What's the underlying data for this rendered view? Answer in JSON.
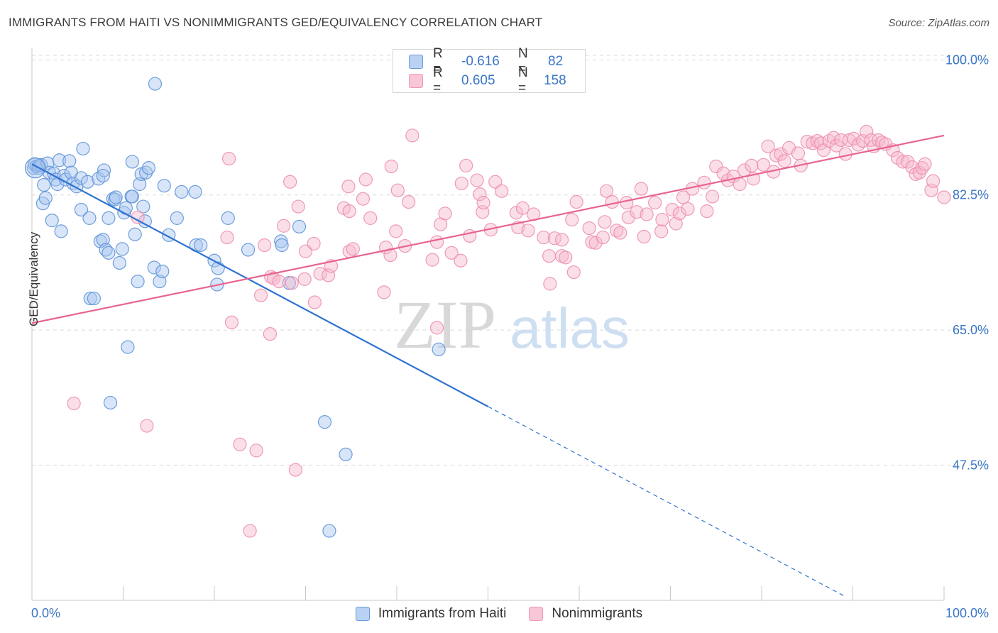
{
  "header": {
    "title": "IMMIGRANTS FROM HAITI VS NONIMMIGRANTS GED/EQUIVALENCY CORRELATION CHART",
    "source": "Source: ZipAtlas.com"
  },
  "watermark": {
    "zip": "ZIP",
    "atlas": "atlas"
  },
  "legend_top": {
    "rows": [
      {
        "r_label": "R =",
        "r_value": "-0.616",
        "n_label": "N =",
        "n_value": "82"
      },
      {
        "r_label": "R =",
        "r_value": "0.605",
        "n_label": "N =",
        "n_value": "158"
      }
    ]
  },
  "legend_bottom": {
    "series1": "Immigrants from Haiti",
    "series2": "Nonimmigrants"
  },
  "colors": {
    "blue_fill": "#a9c6ef",
    "blue_stroke": "#5e93d8",
    "blue_line": "#2f73d0",
    "pink_fill": "#f6b8cc",
    "pink_stroke": "#ec8fb0",
    "pink_line": "#e8648f",
    "axis_text": "#3a76c7",
    "grid": "#d9d9d9"
  },
  "chart_data": {
    "type": "scatter",
    "title": "IMMIGRANTS FROM HAITI VS NONIMMIGRANTS GED/EQUIVALENCY CORRELATION CHART",
    "xlabel": "",
    "ylabel": "GED/Equivalency",
    "xlim": [
      0,
      100
    ],
    "ylim": [
      30,
      101.5
    ],
    "x_tick_labels": [
      "0.0%",
      "100.0%"
    ],
    "y_ticks": [
      47.5,
      65.0,
      82.5,
      100.0
    ],
    "y_tick_labels": [
      "47.5%",
      "65.0%",
      "82.5%",
      "100.0%"
    ],
    "grid": "horizontal dashed",
    "legend_position": "top-center and bottom",
    "series": [
      {
        "name": "Immigrants from Haiti",
        "R": -0.616,
        "N": 82,
        "trend": {
          "x": [
            0,
            50
          ],
          "y": [
            86.5,
            55.1
          ]
        },
        "trend_dashed": {
          "x": [
            50,
            89
          ],
          "y": [
            55.1,
            30.6
          ]
        },
        "points": [
          [
            0.2,
            86.0
          ],
          [
            0.3,
            86.5
          ],
          [
            0.5,
            86.2
          ],
          [
            0.7,
            86.0
          ],
          [
            0.8,
            86.3
          ],
          [
            1.0,
            86.4
          ],
          [
            1.2,
            81.4
          ],
          [
            1.3,
            83.8
          ],
          [
            1.5,
            82.1
          ],
          [
            1.7,
            86.6
          ],
          [
            1.9,
            85.4
          ],
          [
            2.2,
            79.2
          ],
          [
            2.4,
            85.3
          ],
          [
            2.6,
            84.5
          ],
          [
            2.8,
            83.9
          ],
          [
            3.0,
            87.0
          ],
          [
            3.2,
            77.8
          ],
          [
            3.5,
            85.0
          ],
          [
            3.7,
            84.5
          ],
          [
            4.1,
            86.9
          ],
          [
            4.3,
            85.4
          ],
          [
            4.5,
            84.0
          ],
          [
            4.9,
            83.6
          ],
          [
            5.4,
            80.6
          ],
          [
            5.4,
            84.7
          ],
          [
            5.6,
            88.5
          ],
          [
            6.1,
            84.2
          ],
          [
            6.3,
            79.5
          ],
          [
            6.4,
            69.1
          ],
          [
            6.8,
            69.1
          ],
          [
            7.3,
            84.6
          ],
          [
            7.5,
            76.5
          ],
          [
            7.8,
            76.7
          ],
          [
            7.9,
            85.7
          ],
          [
            7.8,
            85.0
          ],
          [
            8.1,
            75.4
          ],
          [
            8.4,
            75.0
          ],
          [
            8.4,
            79.5
          ],
          [
            8.6,
            55.6
          ],
          [
            8.9,
            82.0
          ],
          [
            9.1,
            81.9
          ],
          [
            9.2,
            82.2
          ],
          [
            9.6,
            73.7
          ],
          [
            9.9,
            75.5
          ],
          [
            10.1,
            80.2
          ],
          [
            10.3,
            80.8
          ],
          [
            10.5,
            62.8
          ],
          [
            10.9,
            82.3
          ],
          [
            11.0,
            82.3
          ],
          [
            11.0,
            86.8
          ],
          [
            11.3,
            77.4
          ],
          [
            11.6,
            71.3
          ],
          [
            11.8,
            83.9
          ],
          [
            12.0,
            85.2
          ],
          [
            12.2,
            81.0
          ],
          [
            12.4,
            79.1
          ],
          [
            12.5,
            85.4
          ],
          [
            12.8,
            86.0
          ],
          [
            13.4,
            73.1
          ],
          [
            13.5,
            96.9
          ],
          [
            14.0,
            71.3
          ],
          [
            14.3,
            72.6
          ],
          [
            14.5,
            83.7
          ],
          [
            15.0,
            77.3
          ],
          [
            15.9,
            79.5
          ],
          [
            16.4,
            82.9
          ],
          [
            17.9,
            82.9
          ],
          [
            18.0,
            76.0
          ],
          [
            18.5,
            76.0
          ],
          [
            20.0,
            74.0
          ],
          [
            20.4,
            73.0
          ],
          [
            20.3,
            70.9
          ],
          [
            21.5,
            79.5
          ],
          [
            23.7,
            75.4
          ],
          [
            27.3,
            76.5
          ],
          [
            27.4,
            76.0
          ],
          [
            28.2,
            71.1
          ],
          [
            29.3,
            78.4
          ],
          [
            32.1,
            53.1
          ],
          [
            32.6,
            39.0
          ],
          [
            34.4,
            48.9
          ],
          [
            44.6,
            62.5
          ]
        ]
      },
      {
        "name": "Nonimmigrants",
        "R": 0.605,
        "N": 158,
        "trend": {
          "x": [
            0,
            100
          ],
          "y": [
            65.9,
            90.2
          ]
        },
        "points": [
          [
            4.6,
            55.5
          ],
          [
            11.6,
            79.6
          ],
          [
            12.6,
            52.6
          ],
          [
            21.4,
            77.0
          ],
          [
            21.6,
            87.2
          ],
          [
            21.9,
            66.0
          ],
          [
            22.8,
            50.2
          ],
          [
            23.9,
            39.0
          ],
          [
            24.6,
            49.4
          ],
          [
            25.1,
            69.5
          ],
          [
            25.5,
            76.0
          ],
          [
            26.2,
            71.9
          ],
          [
            26.1,
            64.5
          ],
          [
            26.5,
            71.7
          ],
          [
            27.1,
            71.3
          ],
          [
            27.6,
            78.5
          ],
          [
            28.3,
            84.2
          ],
          [
            28.5,
            71.1
          ],
          [
            28.9,
            46.9
          ],
          [
            29.2,
            81.0
          ],
          [
            29.9,
            71.6
          ],
          [
            30.0,
            75.2
          ],
          [
            30.9,
            76.2
          ],
          [
            31.0,
            68.6
          ],
          [
            31.6,
            72.3
          ],
          [
            32.5,
            72.1
          ],
          [
            32.8,
            73.3
          ],
          [
            34.2,
            80.8
          ],
          [
            34.7,
            83.6
          ],
          [
            34.8,
            75.2
          ],
          [
            34.8,
            80.4
          ],
          [
            35.2,
            75.5
          ],
          [
            36.6,
            84.5
          ],
          [
            36.3,
            82.0
          ],
          [
            37.1,
            79.5
          ],
          [
            38.6,
            69.9
          ],
          [
            38.8,
            75.7
          ],
          [
            39.3,
            74.7
          ],
          [
            39.4,
            86.2
          ],
          [
            39.9,
            77.8
          ],
          [
            40.1,
            83.1
          ],
          [
            40.9,
            75.9
          ],
          [
            41.3,
            81.6
          ],
          [
            41.7,
            90.2
          ],
          [
            43.9,
            74.1
          ],
          [
            44.4,
            76.4
          ],
          [
            44.4,
            65.3
          ],
          [
            44.8,
            78.7
          ],
          [
            45.3,
            80.1
          ],
          [
            46.0,
            75.0
          ],
          [
            47.0,
            74.0
          ],
          [
            47.1,
            84.0
          ],
          [
            47.6,
            86.3
          ],
          [
            48.0,
            77.2
          ],
          [
            48.8,
            84.4
          ],
          [
            49.1,
            82.6
          ],
          [
            49.4,
            80.3
          ],
          [
            49.5,
            81.5
          ],
          [
            50.3,
            78.0
          ],
          [
            50.8,
            84.2
          ],
          [
            51.5,
            83.0
          ],
          [
            53.1,
            80.2
          ],
          [
            53.3,
            78.3
          ],
          [
            53.8,
            80.8
          ],
          [
            54.4,
            77.9
          ],
          [
            55.0,
            80.0
          ],
          [
            56.1,
            77.0
          ],
          [
            56.8,
            71.0
          ],
          [
            56.7,
            74.6
          ],
          [
            57.3,
            76.9
          ],
          [
            58.1,
            76.7
          ],
          [
            58.1,
            74.6
          ],
          [
            58.5,
            74.4
          ],
          [
            59.4,
            72.5
          ],
          [
            59.2,
            79.3
          ],
          [
            59.7,
            81.6
          ],
          [
            61.1,
            78.2
          ],
          [
            61.4,
            76.4
          ],
          [
            61.8,
            76.3
          ],
          [
            62.6,
            77.0
          ],
          [
            62.8,
            79.0
          ],
          [
            63.0,
            83.0
          ],
          [
            63.6,
            81.6
          ],
          [
            64.1,
            77.9
          ],
          [
            64.5,
            77.6
          ],
          [
            65.2,
            81.5
          ],
          [
            65.4,
            79.6
          ],
          [
            66.3,
            80.3
          ],
          [
            66.8,
            83.3
          ],
          [
            67.1,
            77.1
          ],
          [
            67.4,
            80.0
          ],
          [
            68.3,
            81.5
          ],
          [
            69.0,
            77.8
          ],
          [
            69.1,
            79.3
          ],
          [
            70.2,
            80.6
          ],
          [
            70.6,
            78.8
          ],
          [
            71.0,
            80.1
          ],
          [
            71.4,
            82.2
          ],
          [
            71.9,
            80.7
          ],
          [
            72.4,
            83.3
          ],
          [
            73.7,
            84.1
          ],
          [
            74.0,
            80.4
          ],
          [
            74.6,
            82.3
          ],
          [
            75.0,
            86.2
          ],
          [
            75.8,
            85.3
          ],
          [
            76.3,
            84.4
          ],
          [
            76.9,
            84.9
          ],
          [
            77.6,
            83.9
          ],
          [
            78.1,
            85.7
          ],
          [
            78.9,
            86.3
          ],
          [
            79.1,
            84.6
          ],
          [
            80.2,
            86.4
          ],
          [
            80.7,
            88.8
          ],
          [
            81.3,
            85.5
          ],
          [
            81.6,
            87.6
          ],
          [
            82.1,
            87.8
          ],
          [
            82.5,
            86.9
          ],
          [
            83.0,
            88.6
          ],
          [
            84.0,
            87.9
          ],
          [
            84.3,
            86.3
          ],
          [
            85.0,
            89.4
          ],
          [
            85.6,
            89.2
          ],
          [
            86.1,
            89.5
          ],
          [
            86.5,
            89.2
          ],
          [
            86.8,
            88.3
          ],
          [
            87.4,
            89.5
          ],
          [
            87.9,
            89.9
          ],
          [
            88.2,
            88.9
          ],
          [
            88.7,
            89.6
          ],
          [
            89.2,
            87.8
          ],
          [
            89.6,
            89.6
          ],
          [
            90.1,
            89.8
          ],
          [
            90.6,
            89.0
          ],
          [
            91.1,
            89.5
          ],
          [
            91.5,
            90.7
          ],
          [
            92.0,
            89.6
          ],
          [
            92.3,
            88.8
          ],
          [
            92.8,
            89.6
          ],
          [
            93.2,
            89.3
          ],
          [
            93.6,
            89.1
          ],
          [
            94.4,
            88.3
          ],
          [
            94.9,
            87.3
          ],
          [
            95.5,
            86.8
          ],
          [
            96.0,
            86.8
          ],
          [
            96.5,
            86.1
          ],
          [
            96.9,
            85.2
          ],
          [
            97.3,
            85.4
          ],
          [
            97.6,
            86.0
          ],
          [
            97.9,
            86.5
          ],
          [
            98.6,
            83.1
          ],
          [
            98.8,
            84.3
          ],
          [
            100.0,
            82.2
          ]
        ]
      }
    ]
  }
}
